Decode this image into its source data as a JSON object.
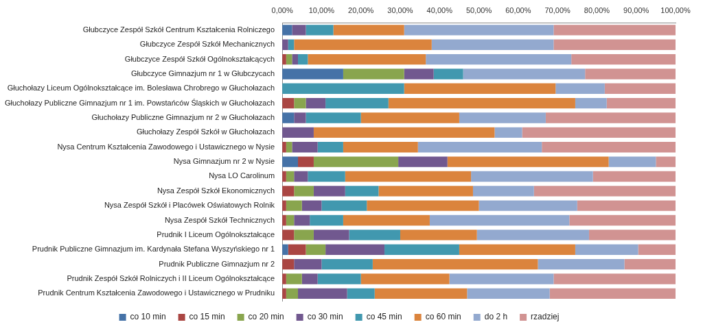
{
  "chart_data": {
    "type": "bar",
    "orientation": "horizontal",
    "stacked": true,
    "legend": "bottom",
    "grid": false,
    "categories": [
      "Głubczyce Zespół Szkół Centrum Kształcenia Rolniczego",
      "Głubczyce Zespół Szkół Mechanicznych",
      "Głubczyce Zespół Szkół Ogólnokształcących",
      "Głubczyce Gimnazjum nr 1 w Głubczycach",
      "Głuchołazy Liceum Ogólnokształcące im. Bolesława Chrobrego w Głuchołazach",
      "Głuchołazy Publiczne Gimnazjum nr 1 im. Powstańców Śląskich w Głuchołazach",
      "Głuchołazy Publiczne Gimnazjum nr 2 w Głuchołazach",
      "Głuchołazy Zespół Szkół w Głuchołazach",
      "Nysa Centrum Kształcenia Zawodowego i Ustawicznego w Nysie",
      "Nysa Gimnazjum nr 2 w Nysie",
      "Nysa LO Carolinum",
      "Nysa Zespół Szkół Ekonomicznych",
      "Nysa Zespół Szkół i Placówek Oświatowych Rolnik",
      "Nysa Zespół Szkół Technicznych",
      "Prudnik I Liceum Ogólnokształcące",
      "Prudnik Publiczne Gimnazjum im. Kardynała Stefana Wyszyńskiego nr 1",
      "Prudnik Publiczne Gimnazjum nr 2",
      "Prudnik Zespół Szkół Rolniczych i II Liceum Ogólnokształcące",
      "Prudnik Centrum Kształcenia Zawodowego i Ustawicznego w Prudniku"
    ],
    "series": [
      {
        "name": "co 10 min",
        "color": "#4572a7",
        "values": [
          2.5,
          0,
          0,
          15.5,
          0,
          0,
          3,
          0,
          0,
          4,
          0,
          0,
          0,
          0,
          0,
          1.5,
          0,
          0,
          0
        ]
      },
      {
        "name": "co 15 min",
        "color": "#aa4643",
        "values": [
          0,
          0,
          1,
          0,
          0,
          3,
          0,
          0,
          1,
          4,
          1,
          3,
          1,
          1,
          3,
          4.5,
          3,
          1,
          1
        ]
      },
      {
        "name": "co 20 min",
        "color": "#89a54e",
        "values": [
          0,
          0,
          1.5,
          15.5,
          0,
          3,
          0,
          0,
          1.5,
          21.5,
          2,
          5,
          4,
          2,
          5,
          5,
          0,
          4,
          3
        ]
      },
      {
        "name": "co 30 min",
        "color": "#71588f",
        "values": [
          3.5,
          1.5,
          1.5,
          7.5,
          0,
          5,
          3,
          8,
          6.5,
          12.5,
          3.5,
          8,
          5,
          4,
          9,
          15,
          7,
          4,
          12.5
        ]
      },
      {
        "name": "co 45 min",
        "color": "#4198af",
        "values": [
          7,
          1.5,
          2.5,
          7.5,
          31,
          16,
          14,
          0,
          6.5,
          0,
          9.5,
          8.5,
          11.5,
          8.5,
          13,
          19,
          13,
          11,
          7
        ]
      },
      {
        "name": "co 60 min",
        "color": "#db843d",
        "values": [
          18,
          35,
          30,
          0,
          38.5,
          47.5,
          25,
          46,
          19,
          41,
          32,
          24,
          28.5,
          22,
          19.5,
          29.5,
          42,
          22.5,
          23.5
        ]
      },
      {
        "name": "do 2 h",
        "color": "#93a9cf",
        "values": [
          38,
          31,
          37,
          31,
          12.5,
          8,
          22,
          7,
          31.5,
          12,
          31,
          15.5,
          25,
          35.5,
          28.5,
          16,
          22,
          26.5,
          21
        ]
      },
      {
        "name": "rzadziej",
        "color": "#d19392",
        "values": [
          31,
          31,
          26.5,
          23,
          18,
          17.5,
          33,
          39,
          34,
          5,
          21,
          36,
          25,
          27,
          22,
          9.5,
          13,
          31,
          32
        ]
      }
    ],
    "xlim": [
      0,
      100
    ],
    "xticks": [
      {
        "value": 0,
        "label": "0,00%"
      },
      {
        "value": 10,
        "label": "10,00%"
      },
      {
        "value": 20,
        "label": "20,00%"
      },
      {
        "value": 30,
        "label": "30,00%"
      },
      {
        "value": 40,
        "label": "40,00%"
      },
      {
        "value": 50,
        "label": "50,00%"
      },
      {
        "value": 60,
        "label": "60,00%"
      },
      {
        "value": 70,
        "label": "70,00%"
      },
      {
        "value": 80,
        "label": "80,00%"
      },
      {
        "value": 90,
        "label": "90,00%"
      },
      {
        "value": 100,
        "label": "100,00%"
      }
    ]
  }
}
